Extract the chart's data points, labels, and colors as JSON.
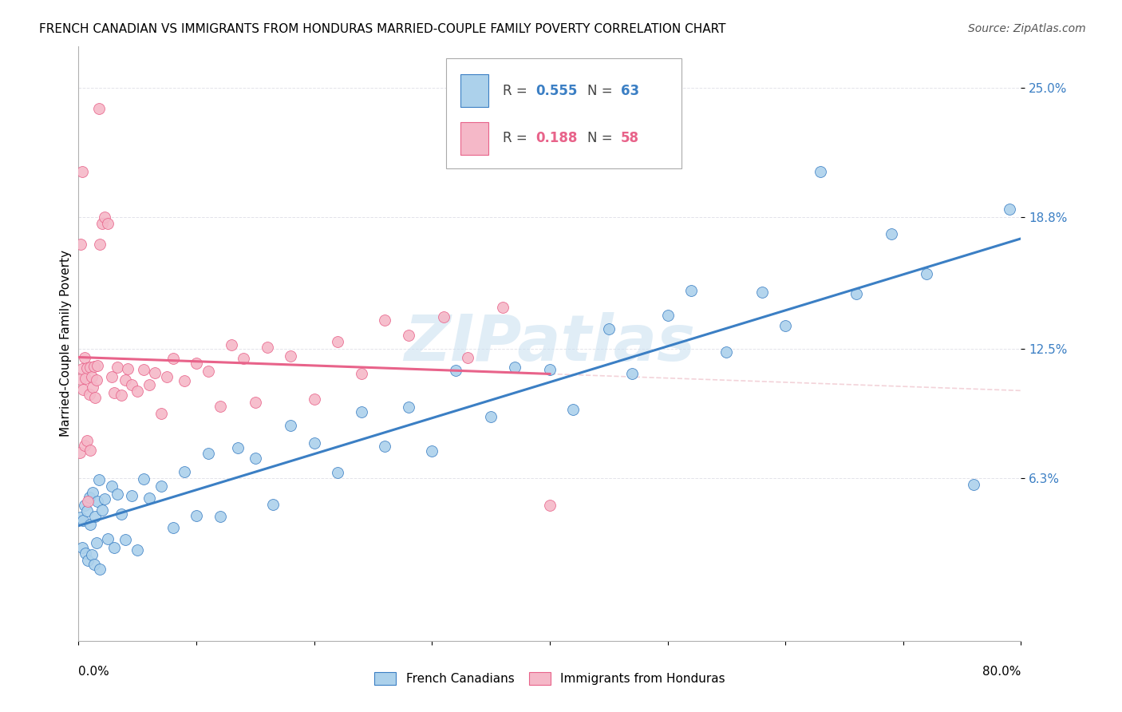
{
  "title": "FRENCH CANADIAN VS IMMIGRANTS FROM HONDURAS MARRIED-COUPLE FAMILY POVERTY CORRELATION CHART",
  "source": "Source: ZipAtlas.com",
  "ylabel": "Married-Couple Family Poverty",
  "yticks": [
    "6.3%",
    "12.5%",
    "18.8%",
    "25.0%"
  ],
  "ytick_vals": [
    0.063,
    0.125,
    0.188,
    0.25
  ],
  "xlim": [
    0.0,
    0.8
  ],
  "ylim": [
    -0.015,
    0.27
  ],
  "color_blue": "#acd1eb",
  "color_pink": "#f5b8c8",
  "color_blue_line": "#3b7fc4",
  "color_pink_line": "#e8638a",
  "color_dashed": "#cccccc",
  "watermark": "ZIPatlas",
  "background_color": "#ffffff"
}
